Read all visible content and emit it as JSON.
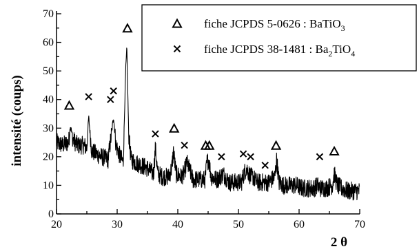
{
  "chart_data": {
    "type": "line",
    "title": "",
    "xlabel": "2 θ",
    "ylabel": "intensité  (coups)",
    "xlim": [
      20,
      70
    ],
    "ylim": [
      0,
      70
    ],
    "x_ticks": [
      20,
      30,
      40,
      50,
      60,
      70
    ],
    "y_ticks": [
      0,
      10,
      20,
      30,
      40,
      50,
      60,
      70
    ],
    "grid": false,
    "legend": {
      "placement": "top-right",
      "entries": [
        {
          "marker": "triangle",
          "label_main": "fiche JCPDS 5-0626 : BaTiO",
          "label_sub": "3",
          "label_tail": ""
        },
        {
          "marker": "cross",
          "label_main": "fiche JCPDS 38-1481 : Ba",
          "label_sub": "2",
          "label_tail": "TiO",
          "label_sub2": "4"
        }
      ]
    },
    "series": [
      {
        "x": [
          20,
          21,
          22,
          22.3,
          22.7,
          23.5,
          24.5,
          25.0,
          25.3,
          25.8,
          26.5,
          27.5,
          28.5,
          29.0,
          29.4,
          29.8,
          30.5,
          31.0,
          31.4,
          31.6,
          31.9,
          32.3,
          33.0,
          34.0,
          35.0,
          36.0,
          36.3,
          36.7,
          37.5,
          38.5,
          39.0,
          39.3,
          39.7,
          40.5,
          41.0,
          41.5,
          42.5,
          43.5,
          44.5,
          44.8,
          45.1,
          45.5,
          46.5,
          47.0,
          47.5,
          48.5,
          49.5,
          50.5,
          50.9,
          51.3,
          52.0,
          52.4,
          53.0,
          54.0,
          55.0,
          56.0,
          56.3,
          56.7,
          57.5,
          58.5,
          59.5,
          60.5,
          61.5,
          62.5,
          63.0,
          63.5,
          64.5,
          65.5,
          65.8,
          66.3,
          67.0,
          68.0,
          69.0,
          70.0
        ],
        "y": [
          25,
          24,
          25,
          31,
          26,
          24,
          24,
          23,
          34,
          22,
          21,
          20,
          19,
          27,
          34,
          24,
          20,
          18,
          50,
          58,
          28,
          19,
          18,
          17,
          16,
          14,
          23,
          14,
          13,
          13,
          16,
          22,
          14,
          13,
          14,
          18,
          12,
          12,
          12,
          18,
          19,
          13,
          12,
          13,
          14,
          11,
          11,
          11,
          14,
          16,
          13,
          13,
          11,
          11,
          11,
          13,
          19,
          11,
          10,
          10,
          10,
          9,
          9,
          9,
          10,
          9,
          9,
          10,
          14,
          10,
          9,
          8,
          8,
          8
        ]
      }
    ],
    "markers": [
      {
        "type": "triangle",
        "x": 22.1,
        "y": 38
      },
      {
        "type": "triangle",
        "x": 31.7,
        "y": 65
      },
      {
        "type": "triangle",
        "x": 39.4,
        "y": 30
      },
      {
        "type": "triangle",
        "x": 44.6,
        "y": 24
      },
      {
        "type": "triangle",
        "x": 45.2,
        "y": 24
      },
      {
        "type": "triangle",
        "x": 56.2,
        "y": 24
      },
      {
        "type": "triangle",
        "x": 65.8,
        "y": 22
      },
      {
        "type": "cross",
        "x": 25.3,
        "y": 41
      },
      {
        "type": "cross",
        "x": 28.9,
        "y": 40
      },
      {
        "type": "cross",
        "x": 29.4,
        "y": 43
      },
      {
        "type": "cross",
        "x": 36.3,
        "y": 28
      },
      {
        "type": "cross",
        "x": 41.1,
        "y": 24
      },
      {
        "type": "cross",
        "x": 47.2,
        "y": 20
      },
      {
        "type": "cross",
        "x": 50.8,
        "y": 21
      },
      {
        "type": "cross",
        "x": 52.0,
        "y": 20
      },
      {
        "type": "cross",
        "x": 54.4,
        "y": 17
      },
      {
        "type": "cross",
        "x": 63.4,
        "y": 20
      }
    ]
  }
}
